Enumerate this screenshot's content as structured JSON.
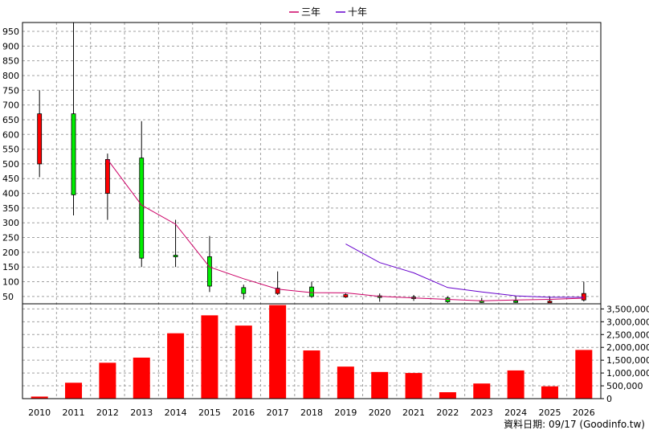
{
  "legend": [
    {
      "name": "三年",
      "color": "#cc0066"
    },
    {
      "name": "十年",
      "color": "#6600cc"
    }
  ],
  "source": "資料日期: 09/17  (Goodinfo.tw)",
  "colors": {
    "up": "#ff0000",
    "down": "#00ee00",
    "volume": "#ff0000"
  },
  "chart_data": {
    "type": "candlestick",
    "x": [
      "2010",
      "2011",
      "2012",
      "2013",
      "2014",
      "2015",
      "2016",
      "2017",
      "2018",
      "2019",
      "2020",
      "2021",
      "2022",
      "2023",
      "2024",
      "2025",
      "2026"
    ],
    "price_ticks": [
      50,
      100,
      150,
      200,
      250,
      300,
      350,
      400,
      450,
      500,
      550,
      600,
      650,
      700,
      750,
      800,
      850,
      900,
      950
    ],
    "price_range": [
      25,
      980
    ],
    "volume_ticks": [
      0,
      500000,
      1000000,
      1500000,
      2000000,
      2500000,
      3000000,
      3500000
    ],
    "volume_tick_labels": [
      "0",
      "500,000",
      "1,000,000",
      "1,500,000",
      "2,000,000",
      "2,500,000",
      "3,000,000",
      "3,500,000"
    ],
    "volume_range": [
      0,
      3700000
    ],
    "candles": [
      {
        "open": 500,
        "close": 670,
        "high": 750,
        "low": 455
      },
      {
        "open": 670,
        "close": 395,
        "high": 980,
        "low": 325
      },
      {
        "open": 400,
        "close": 515,
        "high": 535,
        "low": 310
      },
      {
        "open": 520,
        "close": 180,
        "high": 645,
        "low": 150
      },
      {
        "open": 190,
        "close": 185,
        "high": 310,
        "low": 150
      },
      {
        "open": 185,
        "close": 85,
        "high": 255,
        "low": 65
      },
      {
        "open": 80,
        "close": 60,
        "high": 90,
        "low": 40
      },
      {
        "open": 60,
        "close": 78,
        "high": 135,
        "low": 55
      },
      {
        "open": 82,
        "close": 50,
        "high": 100,
        "low": 45
      },
      {
        "open": 48,
        "close": 56,
        "high": 60,
        "low": 45
      },
      {
        "open": 52,
        "close": 50,
        "high": 60,
        "low": 32
      },
      {
        "open": 48,
        "close": 47,
        "high": 55,
        "low": 35
      },
      {
        "open": 45,
        "close": 32,
        "high": 50,
        "low": 28
      },
      {
        "open": 35,
        "close": 32,
        "high": 45,
        "low": 28
      },
      {
        "open": 35,
        "close": 34,
        "high": 50,
        "low": 28
      },
      {
        "open": 33,
        "close": 34,
        "high": 50,
        "low": 30
      },
      {
        "open": 38,
        "close": 60,
        "high": 100,
        "low": 33
      }
    ],
    "volume": [
      80000,
      620000,
      1400000,
      1600000,
      2550000,
      3250000,
      2850000,
      3650000,
      1880000,
      1250000,
      1040000,
      1000000,
      250000,
      590000,
      1100000,
      480000,
      1900000
    ],
    "series": [
      {
        "name": "三年",
        "values": [
          null,
          null,
          515,
          360,
          295,
          150,
          110,
          75,
          63,
          62,
          50,
          45,
          40,
          35,
          38,
          40,
          44
        ]
      },
      {
        "name": "十年",
        "values": [
          null,
          null,
          null,
          null,
          null,
          null,
          null,
          null,
          null,
          228,
          165,
          130,
          80,
          65,
          52,
          47,
          47
        ]
      }
    ]
  }
}
